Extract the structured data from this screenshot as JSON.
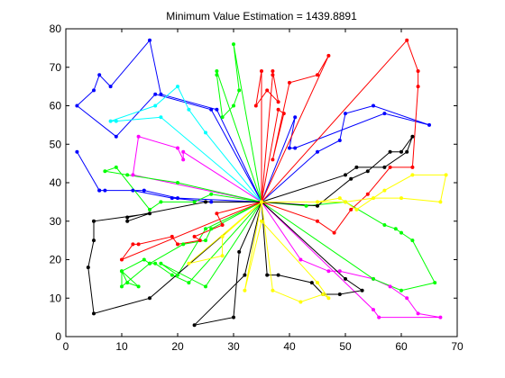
{
  "chart_data": {
    "type": "line",
    "title": "Minimum Value Estimation = 1439.8891",
    "xlabel": "",
    "ylabel": "",
    "xlim": [
      0,
      70
    ],
    "ylim": [
      0,
      80
    ],
    "xticks": [
      0,
      10,
      20,
      30,
      40,
      50,
      60,
      70
    ],
    "yticks": [
      0,
      10,
      20,
      30,
      40,
      50,
      60,
      70,
      80
    ],
    "grid": false,
    "depot": [
      35,
      35
    ],
    "series": [
      {
        "color": "#0000ff",
        "x": [
          35,
          27,
          17,
          15,
          8,
          6,
          5,
          2,
          9,
          16,
          26,
          35
        ],
        "y": [
          35,
          59,
          63,
          77,
          65,
          68,
          64,
          60,
          52,
          63,
          59,
          35
        ]
      },
      {
        "color": "#0000ff",
        "x": [
          35,
          26,
          19,
          12,
          7,
          6,
          2,
          6,
          14,
          20,
          35
        ],
        "y": [
          35,
          35,
          36,
          38,
          38,
          38,
          48,
          38,
          38,
          36,
          35
        ]
      },
      {
        "color": "#0000ff",
        "x": [
          35,
          41,
          40,
          41,
          57,
          65,
          55,
          50,
          49,
          45,
          35
        ],
        "y": [
          35,
          57,
          49,
          49,
          58,
          55,
          60,
          58,
          51,
          48,
          35
        ]
      },
      {
        "color": "#00ffff",
        "x": [
          35,
          17,
          9,
          8,
          16,
          20,
          22,
          25,
          35
        ],
        "y": [
          35,
          57,
          56,
          56,
          60,
          65,
          59,
          53,
          35
        ]
      },
      {
        "color": "#ff00ff",
        "x": [
          35,
          21,
          21,
          20,
          13,
          12,
          35
        ],
        "y": [
          35,
          48,
          46,
          49,
          52,
          42,
          35
        ]
      },
      {
        "color": "#ff00ff",
        "x": [
          35,
          42,
          47,
          49,
          55,
          58,
          61,
          63,
          67,
          56,
          55,
          35
        ],
        "y": [
          35,
          20,
          17,
          17,
          15,
          13,
          10,
          6,
          5,
          5,
          7,
          35
        ]
      },
      {
        "color": "#00ff00",
        "x": [
          35,
          30,
          31,
          30,
          28,
          27,
          27,
          35
        ],
        "y": [
          35,
          76,
          64,
          60,
          57,
          68,
          69,
          35
        ]
      },
      {
        "color": "#00ff00",
        "x": [
          35,
          26,
          23,
          17,
          15,
          9,
          7,
          11,
          20,
          35
        ],
        "y": [
          35,
          37,
          35,
          35,
          33,
          44,
          43,
          42,
          40,
          35
        ]
      },
      {
        "color": "#00ff00",
        "x": [
          35,
          26,
          25,
          21,
          15,
          14,
          10,
          11,
          13,
          10,
          10,
          15,
          16,
          19,
          22,
          35
        ],
        "y": [
          35,
          28,
          25,
          24,
          19,
          20,
          17,
          14,
          13,
          17,
          13,
          19,
          19,
          16,
          14,
          35
        ]
      },
      {
        "color": "#00ff00",
        "x": [
          35,
          43,
          50,
          57,
          59,
          60,
          62,
          66,
          60,
          55,
          35
        ],
        "y": [
          35,
          34,
          35,
          29,
          28,
          27,
          25,
          14,
          12,
          15,
          35
        ]
      },
      {
        "color": "#00ff00",
        "x": [
          35,
          25,
          20,
          17,
          25,
          35
        ],
        "y": [
          35,
          28,
          16,
          19,
          13,
          35
        ]
      },
      {
        "color": "#ff0000",
        "x": [
          35,
          35,
          34,
          36,
          38,
          37,
          37,
          35
        ],
        "y": [
          35,
          69,
          60,
          64,
          61,
          69,
          68,
          35
        ]
      },
      {
        "color": "#ff0000",
        "x": [
          35,
          38,
          39,
          37,
          40,
          45,
          47,
          35
        ],
        "y": [
          35,
          59,
          58,
          46,
          66,
          68,
          73,
          35
        ]
      },
      {
        "color": "#ff0000",
        "x": [
          35,
          45,
          48,
          51,
          54,
          58,
          62,
          63,
          63,
          61,
          35
        ],
        "y": [
          35,
          30,
          27,
          33,
          37,
          44,
          44,
          65,
          69,
          77,
          35
        ]
      },
      {
        "color": "#ff0000",
        "x": [
          35,
          27,
          28,
          23,
          24,
          20,
          19,
          13,
          12,
          10,
          35
        ],
        "y": [
          35,
          32,
          29,
          26,
          25,
          24,
          26,
          24,
          24,
          20,
          35
        ]
      },
      {
        "color": "#000000",
        "x": [
          35,
          25,
          11,
          11,
          15,
          5,
          5,
          4,
          5,
          15,
          35
        ],
        "y": [
          35,
          35,
          31,
          30,
          32,
          30,
          25,
          18,
          6,
          10,
          35
        ]
      },
      {
        "color": "#000000",
        "x": [
          35,
          31,
          30,
          23,
          32,
          35
        ],
        "y": [
          35,
          22,
          5,
          3,
          16,
          35
        ]
      },
      {
        "color": "#000000",
        "x": [
          35,
          36,
          38,
          44,
          46,
          49,
          53,
          50,
          35
        ],
        "y": [
          35,
          16,
          16,
          14,
          11,
          11,
          12,
          15,
          35
        ]
      },
      {
        "color": "#000000",
        "x": [
          35,
          45,
          51,
          54,
          58,
          60,
          62,
          61,
          57,
          52,
          50,
          35
        ],
        "y": [
          35,
          34,
          41,
          43,
          48,
          48,
          52,
          48,
          44,
          44,
          42,
          35
        ]
      },
      {
        "color": "#ffff00",
        "x": [
          35,
          37,
          42,
          46,
          47,
          45,
          35,
          32,
          35
        ],
        "y": [
          35,
          12,
          9,
          11,
          10,
          14,
          30,
          12,
          35
        ]
      },
      {
        "color": "#ffff00",
        "x": [
          35,
          45,
          49,
          52,
          57,
          62,
          68,
          67,
          60,
          55,
          50,
          35
        ],
        "y": [
          35,
          35,
          36,
          33,
          38,
          42,
          42,
          35,
          36,
          36,
          35,
          35
        ]
      },
      {
        "color": "#ffff00",
        "x": [
          35,
          28,
          28,
          22,
          35
        ],
        "y": [
          35,
          26,
          21,
          19,
          35
        ]
      }
    ]
  }
}
